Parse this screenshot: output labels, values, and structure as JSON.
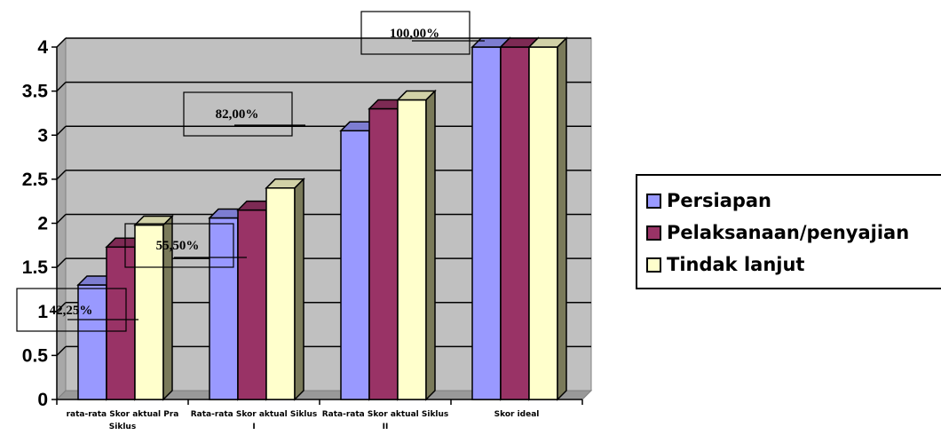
{
  "chart_data": {
    "type": "bar",
    "title": "",
    "xlabel": "",
    "ylabel": "",
    "ylim": [
      0,
      4
    ],
    "yticks": [
      "0",
      "0.5",
      "1",
      "1.5",
      "2",
      "2.5",
      "3",
      "3.5",
      "4"
    ],
    "categories": [
      [
        "rata-rata Skor aktual Pra",
        "Siklus"
      ],
      [
        "Rata-rata Skor aktual Siklus",
        "I"
      ],
      [
        "Rata-rata Skor aktual Siklus",
        "II"
      ],
      [
        "Skor ideal"
      ]
    ],
    "series": [
      {
        "name": "Persiapan",
        "color": "#9999ff",
        "values": [
          1.3,
          2.06,
          3.05,
          4.0
        ]
      },
      {
        "name": "Pelaksanaan/penyajian",
        "color": "#993366",
        "values": [
          1.73,
          2.15,
          3.3,
          4.0
        ]
      },
      {
        "name": "Tindak lanjut",
        "color": "#ffffcc",
        "values": [
          1.98,
          2.4,
          3.4,
          4.0
        ]
      }
    ],
    "grid": true,
    "legend_position": "right",
    "plot_background": "#c0c0c0",
    "annotations": [
      "42,25%",
      "55,50%",
      "82,00%",
      "100,00%"
    ]
  }
}
